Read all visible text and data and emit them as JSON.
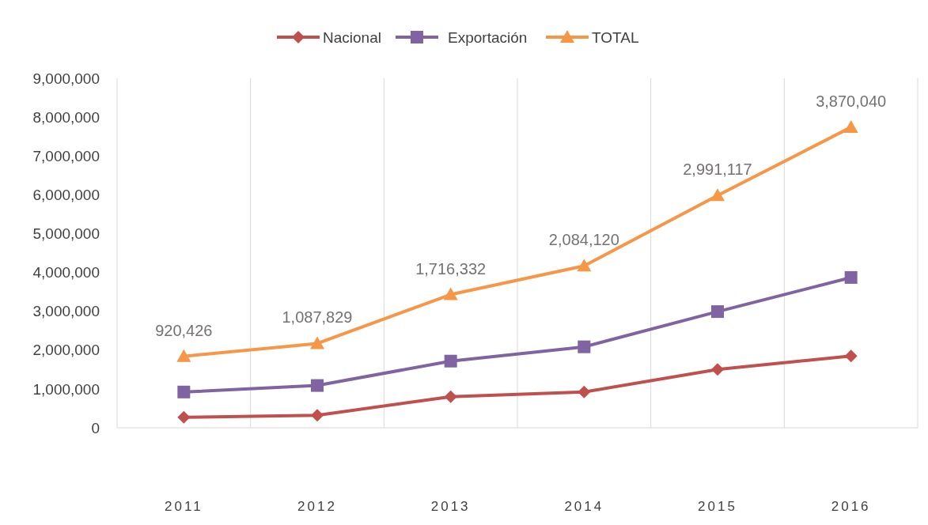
{
  "chart_data": {
    "type": "line",
    "categories": [
      "2011",
      "2012",
      "2013",
      "2014",
      "2015",
      "2016"
    ],
    "series": [
      {
        "name": "Nacional",
        "color": "#c0504d",
        "marker": "diamond",
        "values": [
          270000,
          320000,
          800000,
          920000,
          1500000,
          1850000
        ]
      },
      {
        "name": "Exportación",
        "color": "#8064a2",
        "marker": "square",
        "values": [
          920426,
          1087829,
          1716332,
          2084120,
          2991117,
          3870040
        ]
      },
      {
        "name": "TOTAL",
        "color": "#f79646",
        "marker": "triangle",
        "values": [
          1840000,
          2170000,
          3430000,
          4170000,
          5980000,
          7740000
        ]
      }
    ],
    "ylim": [
      0,
      9000000
    ],
    "yticks": [
      {
        "value": 0,
        "label": "0"
      },
      {
        "value": 1000000,
        "label": "1,000,000"
      },
      {
        "value": 2000000,
        "label": "2,000,000"
      },
      {
        "value": 3000000,
        "label": "3,000,000"
      },
      {
        "value": 4000000,
        "label": "4,000,000"
      },
      {
        "value": 5000000,
        "label": "5,000,000"
      },
      {
        "value": 6000000,
        "label": "6,000,000"
      },
      {
        "value": 7000000,
        "label": "7,000,000"
      },
      {
        "value": 8000000,
        "label": "8,000,000"
      },
      {
        "value": 9000000,
        "label": "9,000,000"
      }
    ],
    "grid": "x",
    "legend": "top",
    "annotations": [
      {
        "text": "920,426",
        "x": "2011",
        "y": 1840000
      },
      {
        "text": "1,087,829",
        "x": "2012",
        "y": 2170000
      },
      {
        "text": "1,716,332",
        "x": "2013",
        "y": 3430000
      },
      {
        "text": "2,084,120",
        "x": "2014",
        "y": 4170000
      },
      {
        "text": "2,991,117",
        "x": "2015",
        "y": 5980000
      },
      {
        "text": "3,870,040",
        "x": "2016",
        "y": 7740000
      }
    ]
  }
}
